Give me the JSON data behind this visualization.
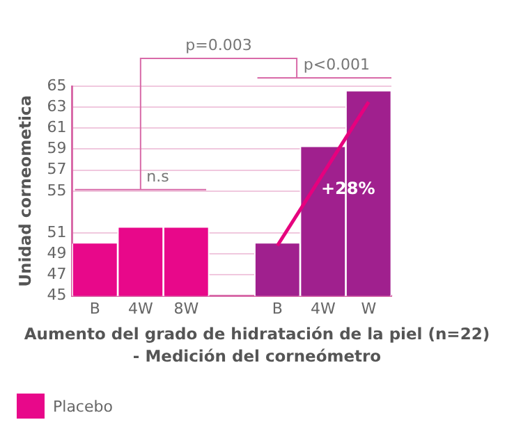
{
  "chart_data": {
    "type": "bar",
    "title": "Aumento del grado de hidratación de la piel  (n=22)\n- Medición del corneómetro",
    "ylabel": "Unidad corneometica",
    "categories": [
      "B",
      "4W",
      "8W",
      null,
      "B",
      "4W",
      "W"
    ],
    "series": [
      {
        "name": "Placebo",
        "color": "#e8088a",
        "values": [
          50,
          51.5,
          51.5,
          null,
          null,
          null,
          null
        ]
      },
      {
        "color": "#a0208e",
        "values": [
          null,
          null,
          null,
          null,
          50,
          59.2,
          64.5
        ]
      },
      {
        "type": "line",
        "color": "#e6007e",
        "values": [
          null,
          null,
          null,
          null,
          49.8,
          null,
          63.5
        ]
      }
    ],
    "ylim": [
      45,
      65
    ],
    "yticks": [
      45,
      47,
      49,
      51,
      55,
      57,
      59,
      61,
      63,
      65
    ],
    "grid": "y",
    "legend": "bottom left",
    "annotations": [
      "p=0.003",
      "p<0.001",
      "n.s",
      "+28%"
    ]
  }
}
